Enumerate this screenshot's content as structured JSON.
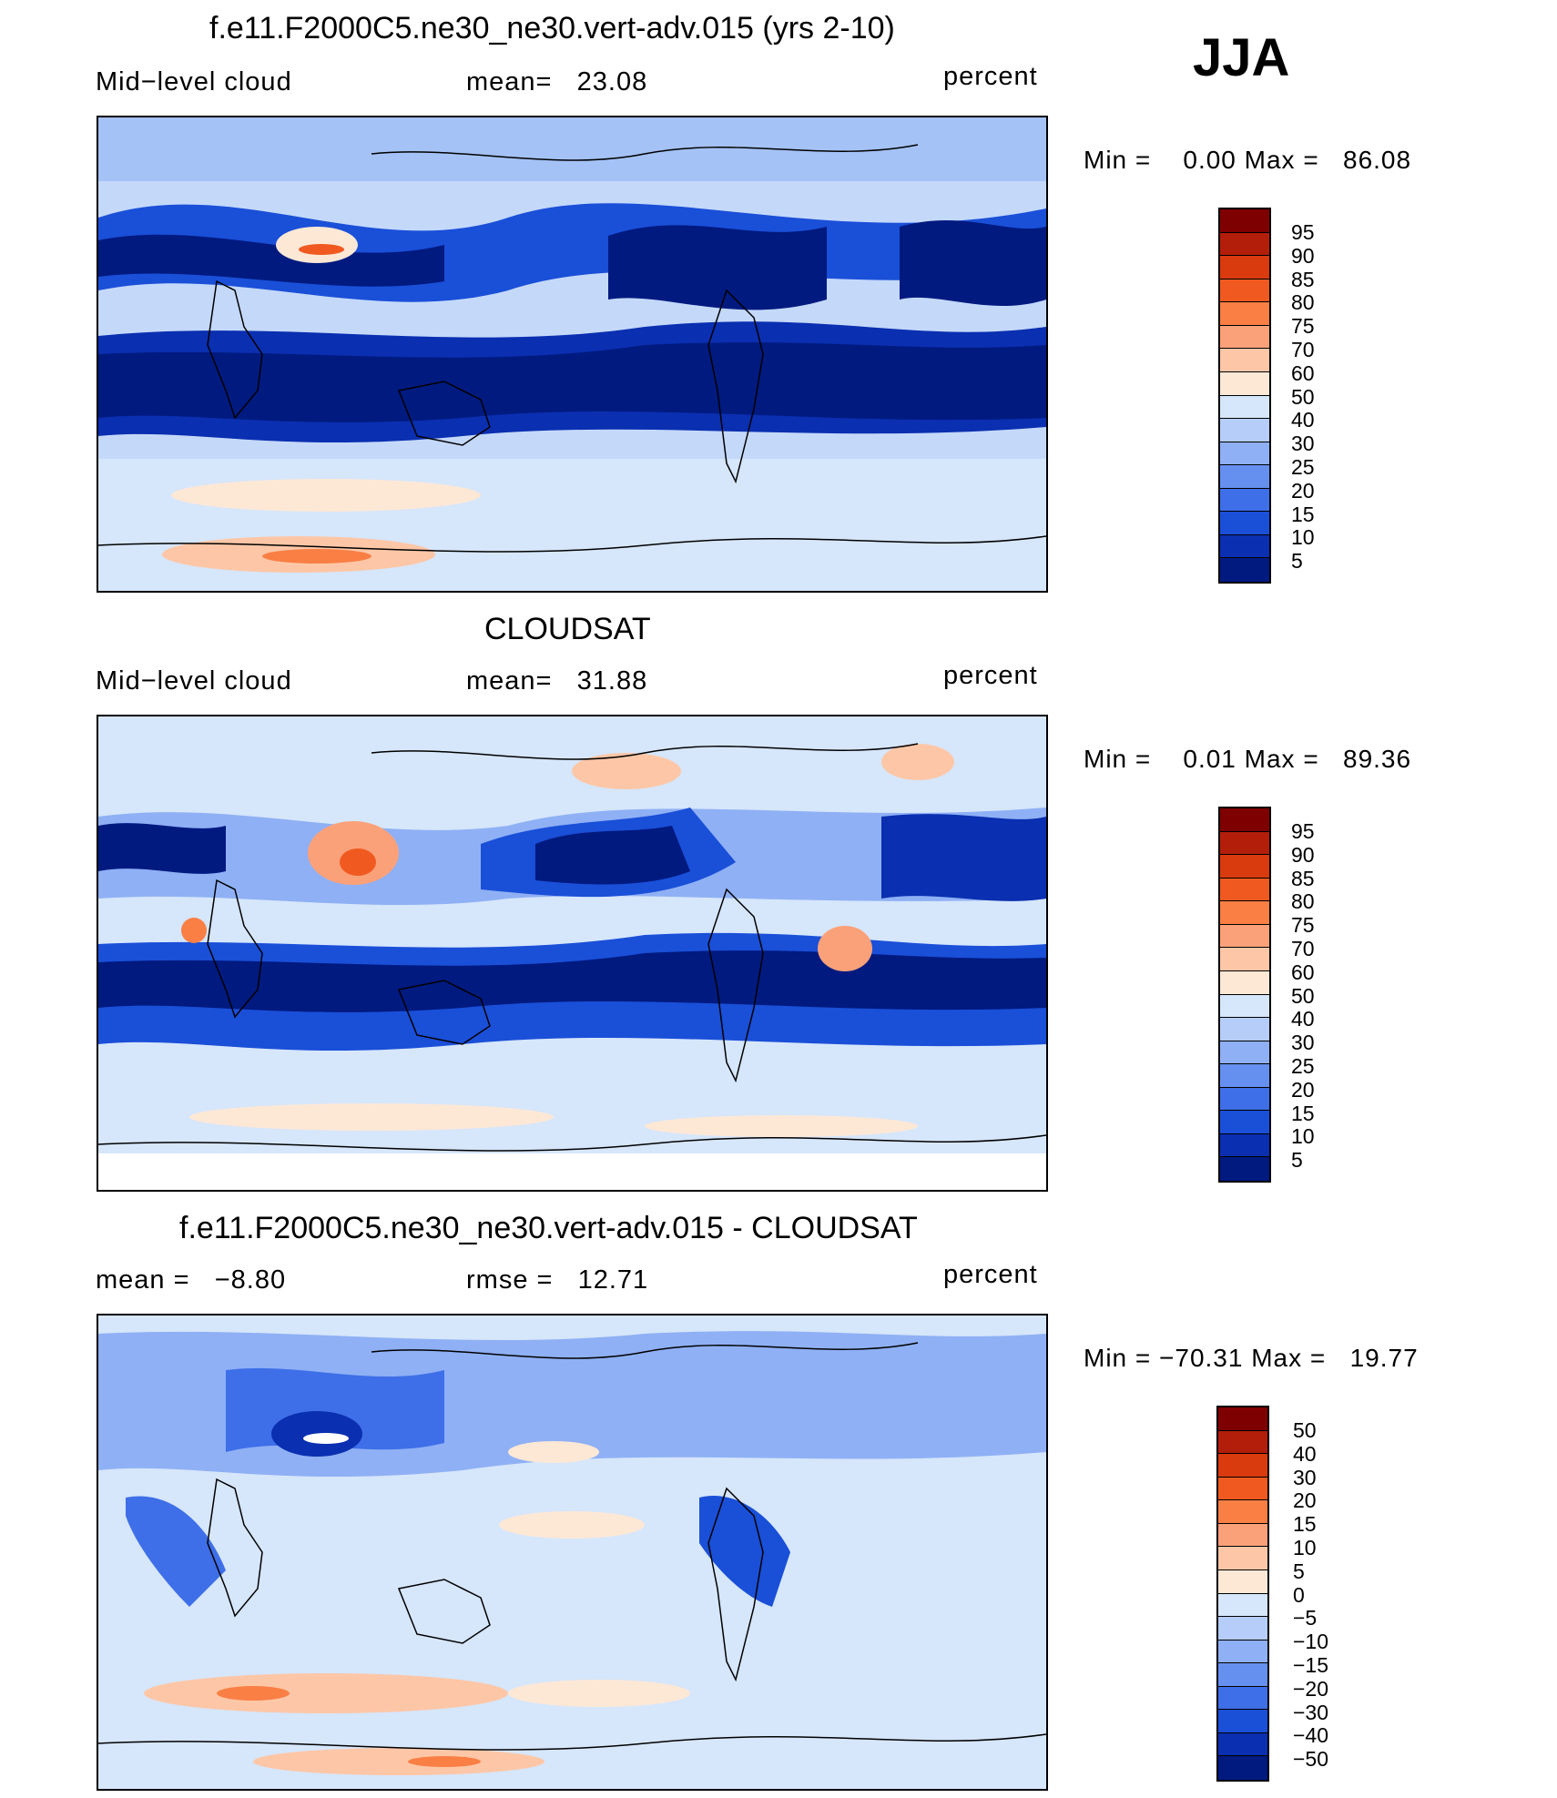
{
  "season": "JJA",
  "panels": [
    {
      "id": "model",
      "title": "f.e11.F2000C5.ne30_ne30.vert-adv.015 (yrs 2-10)",
      "left_label": "Mid−level cloud",
      "center_label": "mean=   23.08",
      "right_label": "percent",
      "minmax": "Min =    0.00 Max =   86.08",
      "colorbar_labels": [
        "95",
        "90",
        "85",
        "80",
        "75",
        "70",
        "60",
        "50",
        "40",
        "30",
        "25",
        "20",
        "15",
        "10",
        "5"
      ]
    },
    {
      "id": "obs",
      "title": "CLOUDSAT",
      "left_label": "Mid−level cloud",
      "center_label": "mean=   31.88",
      "right_label": "percent",
      "minmax": "Min =    0.01 Max =   89.36",
      "colorbar_labels": [
        "95",
        "90",
        "85",
        "80",
        "75",
        "70",
        "60",
        "50",
        "40",
        "30",
        "25",
        "20",
        "15",
        "10",
        "5"
      ]
    },
    {
      "id": "diff",
      "title": "f.e11.F2000C5.ne30_ne30.vert-adv.015 - CLOUDSAT",
      "left_label": "mean =   −8.80",
      "center_label": "rmse =   12.71",
      "right_label": "percent",
      "minmax": "Min = −70.31 Max =   19.77",
      "colorbar_labels": [
        "50",
        "40",
        "30",
        "20",
        "15",
        "10",
        "5",
        "0",
        "−5",
        "−10",
        "−15",
        "−20",
        "−30",
        "−40",
        "−50"
      ]
    }
  ],
  "chart_data": [
    {
      "type": "heatmap",
      "title": "f.e11.F2000C5.ne30_ne30.vert-adv.015 (yrs 2-10)",
      "field": "Mid-level cloud",
      "units": "percent",
      "mean": 23.08,
      "min": 0.0,
      "max": 86.08,
      "contour_levels": [
        5,
        10,
        15,
        20,
        25,
        30,
        40,
        50,
        60,
        70,
        75,
        80,
        85,
        90,
        95
      ]
    },
    {
      "type": "heatmap",
      "title": "CLOUDSAT",
      "field": "Mid-level cloud",
      "units": "percent",
      "mean": 31.88,
      "min": 0.01,
      "max": 89.36,
      "contour_levels": [
        5,
        10,
        15,
        20,
        25,
        30,
        40,
        50,
        60,
        70,
        75,
        80,
        85,
        90,
        95
      ]
    },
    {
      "type": "heatmap",
      "title": "f.e11.F2000C5.ne30_ne30.vert-adv.015 - CLOUDSAT",
      "units": "percent",
      "mean": -8.8,
      "rmse": 12.71,
      "min": -70.31,
      "max": 19.77,
      "contour_levels": [
        -50,
        -40,
        -30,
        -20,
        -15,
        -10,
        -5,
        0,
        5,
        10,
        15,
        20,
        30,
        40,
        50
      ]
    }
  ],
  "colors": {
    "colorbar": [
      "#7f0000",
      "#b31e0a",
      "#d93a0e",
      "#f05a20",
      "#f97f45",
      "#fba179",
      "#fdc7a7",
      "#fde8d6",
      "#d6e6fb",
      "#b5cdf8",
      "#8fb0f5",
      "#6690ef",
      "#3e6fe8",
      "#1a4fd8",
      "#0a2fb0",
      "#001a80"
    ],
    "map_background": "#c4d8fa",
    "continent_outline": "#000000"
  }
}
